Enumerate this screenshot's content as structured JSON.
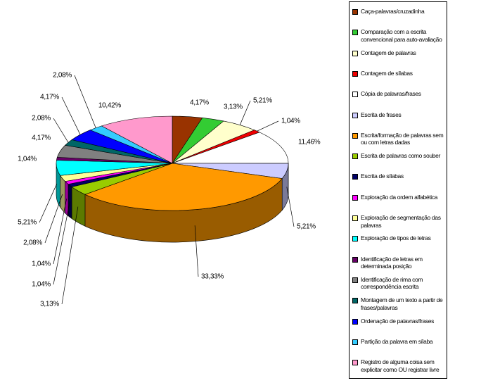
{
  "chart_data": {
    "type": "pie",
    "categories": [
      "Caça-palavras/cruzadinha",
      "Comparação com a escrita convencional para auto-avaliação",
      "Contagem de palavras",
      "Contagem de sílabas",
      "Cópia de palavras/frases",
      "Escrita de frases",
      "Escrita/formação de palavras sem ou com letras dadas",
      "Escrita de palavras como souber",
      "Escrita de sílabas",
      "Exploração da ordem alfabética",
      "Exploração de segmentação das palavras",
      "Exploração de tipos de letras",
      "Identificação de letras em determinada posição",
      "Identificação de rima com correspondência escrita",
      "Montagem de um texto a partir de frases/palavras",
      "Ordenação de palavras/frases",
      "Partição da palavra em sílaba",
      "Registro de alguma coisa sem explicitar como OU registrar livre"
    ],
    "values": [
      4.17,
      3.13,
      5.21,
      1.04,
      11.46,
      5.21,
      33.33,
      3.13,
      1.04,
      1.04,
      2.08,
      5.21,
      1.04,
      4.17,
      2.08,
      4.17,
      2.08,
      10.42
    ],
    "value_labels": [
      "4,17%",
      "3,13%",
      "5,21%",
      "1,04%",
      "11,46%",
      "5,21%",
      "33,33%",
      "3,13%",
      "1,04%",
      "1,04%",
      "2,08%",
      "5,21%",
      "1,04%",
      "4,17%",
      "2,08%",
      "4,17%",
      "2,08%",
      "10,42%"
    ],
    "colors": [
      "#993300",
      "#33cc33",
      "#ffffcc",
      "#ee0000",
      "#ffffff",
      "#ccccff",
      "#ff9900",
      "#99cc00",
      "#000066",
      "#ff00ff",
      "#ffff99",
      "#00ffff",
      "#660066",
      "#808080",
      "#006666",
      "#0000ff",
      "#33ccff",
      "#ff99cc"
    ],
    "legend": "right"
  }
}
